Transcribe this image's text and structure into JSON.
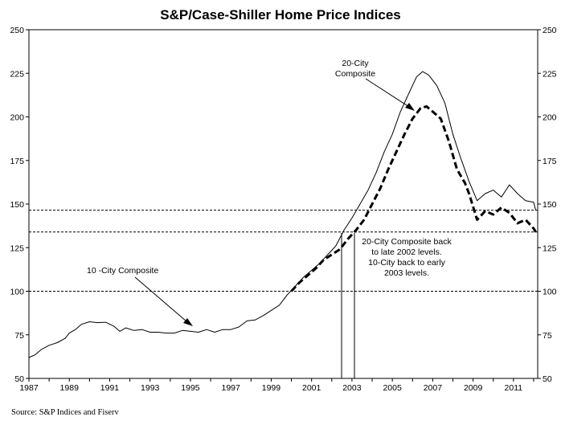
{
  "chart_data": {
    "type": "line",
    "title": "S&P/Case-Shiller Home Price Indices",
    "source": "Source: S&P Indices and Fiserv",
    "xlim": [
      1987,
      2012.2
    ],
    "ylim": [
      50,
      250
    ],
    "y_ticks": [
      50,
      75,
      100,
      125,
      150,
      175,
      200,
      225,
      250
    ],
    "x_ticks": [
      1987,
      1989,
      1991,
      1993,
      1995,
      1997,
      1999,
      2001,
      2003,
      2005,
      2007,
      2009,
      2011
    ],
    "y_ticks_right": true,
    "grid": false,
    "reference_lines": [
      146.5,
      134,
      100
    ],
    "series": [
      {
        "name": "10 -City Composite",
        "style": "solid",
        "points": [
          [
            1987.0,
            62
          ],
          [
            1987.3,
            63.5
          ],
          [
            1987.6,
            66.5
          ],
          [
            1988.0,
            69
          ],
          [
            1988.4,
            70.5
          ],
          [
            1988.8,
            73
          ],
          [
            1989.0,
            76
          ],
          [
            1989.3,
            78
          ],
          [
            1989.6,
            81
          ],
          [
            1990.0,
            82.5
          ],
          [
            1990.4,
            82
          ],
          [
            1990.8,
            82.2
          ],
          [
            1991.2,
            80
          ],
          [
            1991.5,
            77
          ],
          [
            1991.8,
            79
          ],
          [
            1992.2,
            77.5
          ],
          [
            1992.6,
            78
          ],
          [
            1993.0,
            76.5
          ],
          [
            1993.4,
            76.5
          ],
          [
            1993.8,
            76
          ],
          [
            1994.2,
            76
          ],
          [
            1994.6,
            77.5
          ],
          [
            1995.0,
            77
          ],
          [
            1995.4,
            76.5
          ],
          [
            1995.8,
            78
          ],
          [
            1996.2,
            76.5
          ],
          [
            1996.6,
            78
          ],
          [
            1997.0,
            78
          ],
          [
            1997.4,
            79.5
          ],
          [
            1997.8,
            83
          ],
          [
            1998.2,
            83.5
          ],
          [
            1998.6,
            86
          ],
          [
            1999.0,
            89
          ],
          [
            1999.4,
            92
          ],
          [
            1999.8,
            98
          ],
          [
            2000.2,
            103
          ],
          [
            2000.6,
            108
          ],
          [
            2001.0,
            112
          ],
          [
            2001.4,
            116
          ],
          [
            2001.8,
            121
          ],
          [
            2002.2,
            126
          ],
          [
            2002.6,
            135
          ],
          [
            2003.0,
            142
          ],
          [
            2003.4,
            150
          ],
          [
            2003.8,
            158
          ],
          [
            2004.2,
            168
          ],
          [
            2004.6,
            180
          ],
          [
            2005.0,
            190
          ],
          [
            2005.4,
            203
          ],
          [
            2005.8,
            213
          ],
          [
            2006.2,
            223
          ],
          [
            2006.5,
            226
          ],
          [
            2006.8,
            224
          ],
          [
            2007.2,
            218
          ],
          [
            2007.6,
            208
          ],
          [
            2008.0,
            190
          ],
          [
            2008.4,
            176
          ],
          [
            2008.8,
            163
          ],
          [
            2009.2,
            152
          ],
          [
            2009.6,
            156
          ],
          [
            2010.0,
            158
          ],
          [
            2010.4,
            154
          ],
          [
            2010.8,
            161
          ],
          [
            2011.2,
            156
          ],
          [
            2011.6,
            152
          ],
          [
            2012.0,
            151
          ],
          [
            2012.1,
            146.5
          ]
        ]
      },
      {
        "name": "20-City Composite",
        "style": "dashed",
        "points": [
          [
            2000.0,
            100
          ],
          [
            2000.4,
            105
          ],
          [
            2000.8,
            109
          ],
          [
            2001.2,
            113
          ],
          [
            2001.6,
            118
          ],
          [
            2002.0,
            121
          ],
          [
            2002.4,
            124
          ],
          [
            2002.8,
            130
          ],
          [
            2003.2,
            135
          ],
          [
            2003.6,
            141
          ],
          [
            2004.0,
            150
          ],
          [
            2004.4,
            159
          ],
          [
            2004.8,
            170
          ],
          [
            2005.2,
            180
          ],
          [
            2005.6,
            190
          ],
          [
            2006.0,
            199
          ],
          [
            2006.4,
            205
          ],
          [
            2006.7,
            206
          ],
          [
            2007.0,
            203
          ],
          [
            2007.4,
            199
          ],
          [
            2007.8,
            186
          ],
          [
            2008.2,
            170
          ],
          [
            2008.6,
            162
          ],
          [
            2008.8,
            156
          ],
          [
            2009.2,
            141
          ],
          [
            2009.6,
            146
          ],
          [
            2010.0,
            144
          ],
          [
            2010.4,
            148
          ],
          [
            2010.8,
            145
          ],
          [
            2011.2,
            139
          ],
          [
            2011.6,
            141
          ],
          [
            2012.0,
            136
          ],
          [
            2012.1,
            134
          ]
        ]
      }
    ],
    "annotations": [
      {
        "lines": [
          "20-City",
          "Composite"
        ]
      },
      {
        "lines": [
          "10 -City Composite"
        ]
      },
      {
        "lines": [
          "20-City Composite back",
          "to late 2002 levels.",
          "10-City back to early",
          "2003 levels."
        ]
      }
    ]
  }
}
